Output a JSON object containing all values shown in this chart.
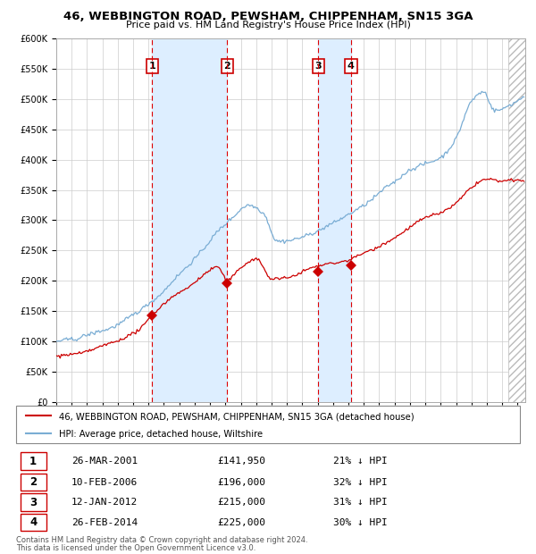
{
  "title1": "46, WEBBINGTON ROAD, PEWSHAM, CHIPPENHAM, SN15 3GA",
  "title2": "Price paid vs. HM Land Registry's House Price Index (HPI)",
  "legend_line1": "46, WEBBINGTON ROAD, PEWSHAM, CHIPPENHAM, SN15 3GA (detached house)",
  "legend_line2": "HPI: Average price, detached house, Wiltshire",
  "footer1": "Contains HM Land Registry data © Crown copyright and database right 2024.",
  "footer2": "This data is licensed under the Open Government Licence v3.0.",
  "sales": [
    {
      "num": 1,
      "date": "26-MAR-2001",
      "price": 141950,
      "pct": "21% ↓ HPI",
      "year": 2001.23
    },
    {
      "num": 2,
      "date": "10-FEB-2006",
      "price": 196000,
      "pct": "32% ↓ HPI",
      "year": 2006.12
    },
    {
      "num": 3,
      "date": "12-JAN-2012",
      "price": 215000,
      "pct": "31% ↓ HPI",
      "year": 2012.04
    },
    {
      "num": 4,
      "date": "26-FEB-2014",
      "price": 225000,
      "pct": "30% ↓ HPI",
      "year": 2014.16
    }
  ],
  "hpi_color": "#7aadd4",
  "price_color": "#cc0000",
  "shade_color": "#ddeeff",
  "grid_color": "#cccccc",
  "vline_color": "#dd0000",
  "background_color": "#ffffff",
  "hatch_color": "#bbbbbb",
  "ylim": [
    0,
    600000
  ],
  "xlim_start": 1995.0,
  "xlim_end": 2025.5
}
